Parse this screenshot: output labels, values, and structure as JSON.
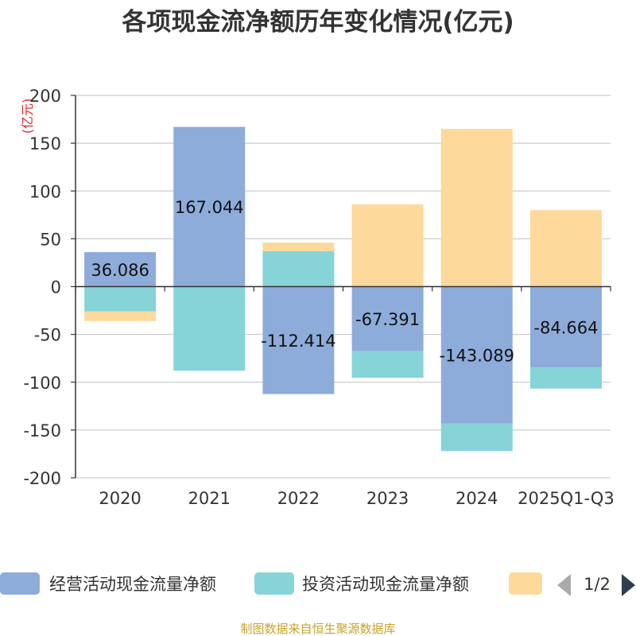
{
  "chart_data": {
    "type": "bar",
    "stacked": true,
    "title": "各项现金流净额历年变化情况(亿元)",
    "y_unit_label": "(亿元)",
    "categories": [
      "2020",
      "2021",
      "2022",
      "2023",
      "2024",
      "2025Q1-Q3"
    ],
    "ylim": [
      -200,
      200
    ],
    "yticks": [
      200,
      150,
      100,
      50,
      0,
      -50,
      -100,
      -150,
      -200
    ],
    "grid": true,
    "legend_position": "bottom",
    "series": [
      {
        "name": "经营活动现金流量净额",
        "color": "#8eacda",
        "values": [
          36.086,
          167.044,
          -112.414,
          -67.391,
          -143.089,
          -84.664
        ],
        "data_labels": [
          "36.086",
          "167.044",
          "-112.414",
          "-67.391",
          "-143.089",
          "-84.664"
        ]
      },
      {
        "name": "投资活动现金流量净额",
        "color": "#86d4d7",
        "values": [
          -26,
          -88,
          37,
          -28,
          -29,
          -22
        ]
      },
      {
        "name": "",
        "color": "#fdd99b",
        "values": [
          -10,
          0,
          9,
          86,
          165,
          80
        ]
      }
    ],
    "legend_pager": "1/2",
    "source": "制图数据来自恒生聚源数据库"
  }
}
